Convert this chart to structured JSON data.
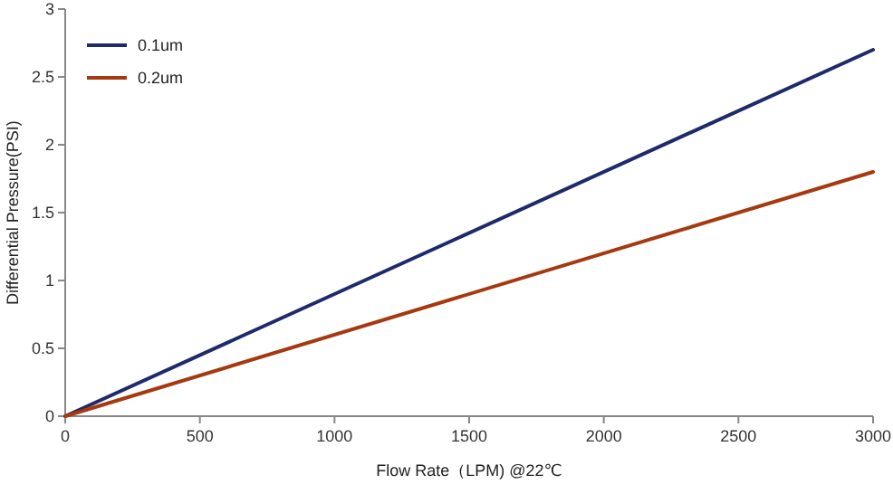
{
  "chart_data": {
    "type": "line",
    "xlabel": "Flow Rate（LPM) @22℃",
    "ylabel": "Differential Pressure(PSI)",
    "x": [
      0,
      3000
    ],
    "series": [
      {
        "name": "0.1um",
        "color": "#1f2a6b",
        "values": [
          0,
          2.7
        ]
      },
      {
        "name": "0.2um",
        "color": "#a53a10",
        "values": [
          0,
          1.8
        ]
      }
    ],
    "xlim": [
      0,
      3000
    ],
    "xticks": [
      0,
      500,
      1000,
      1500,
      2000,
      2500,
      3000
    ],
    "ylim": [
      0,
      3
    ],
    "yticks": [
      0,
      0.5,
      1,
      1.5,
      2,
      2.5,
      3
    ],
    "grid": false,
    "legend": "top left",
    "marker": "none",
    "line_style": "solid"
  }
}
